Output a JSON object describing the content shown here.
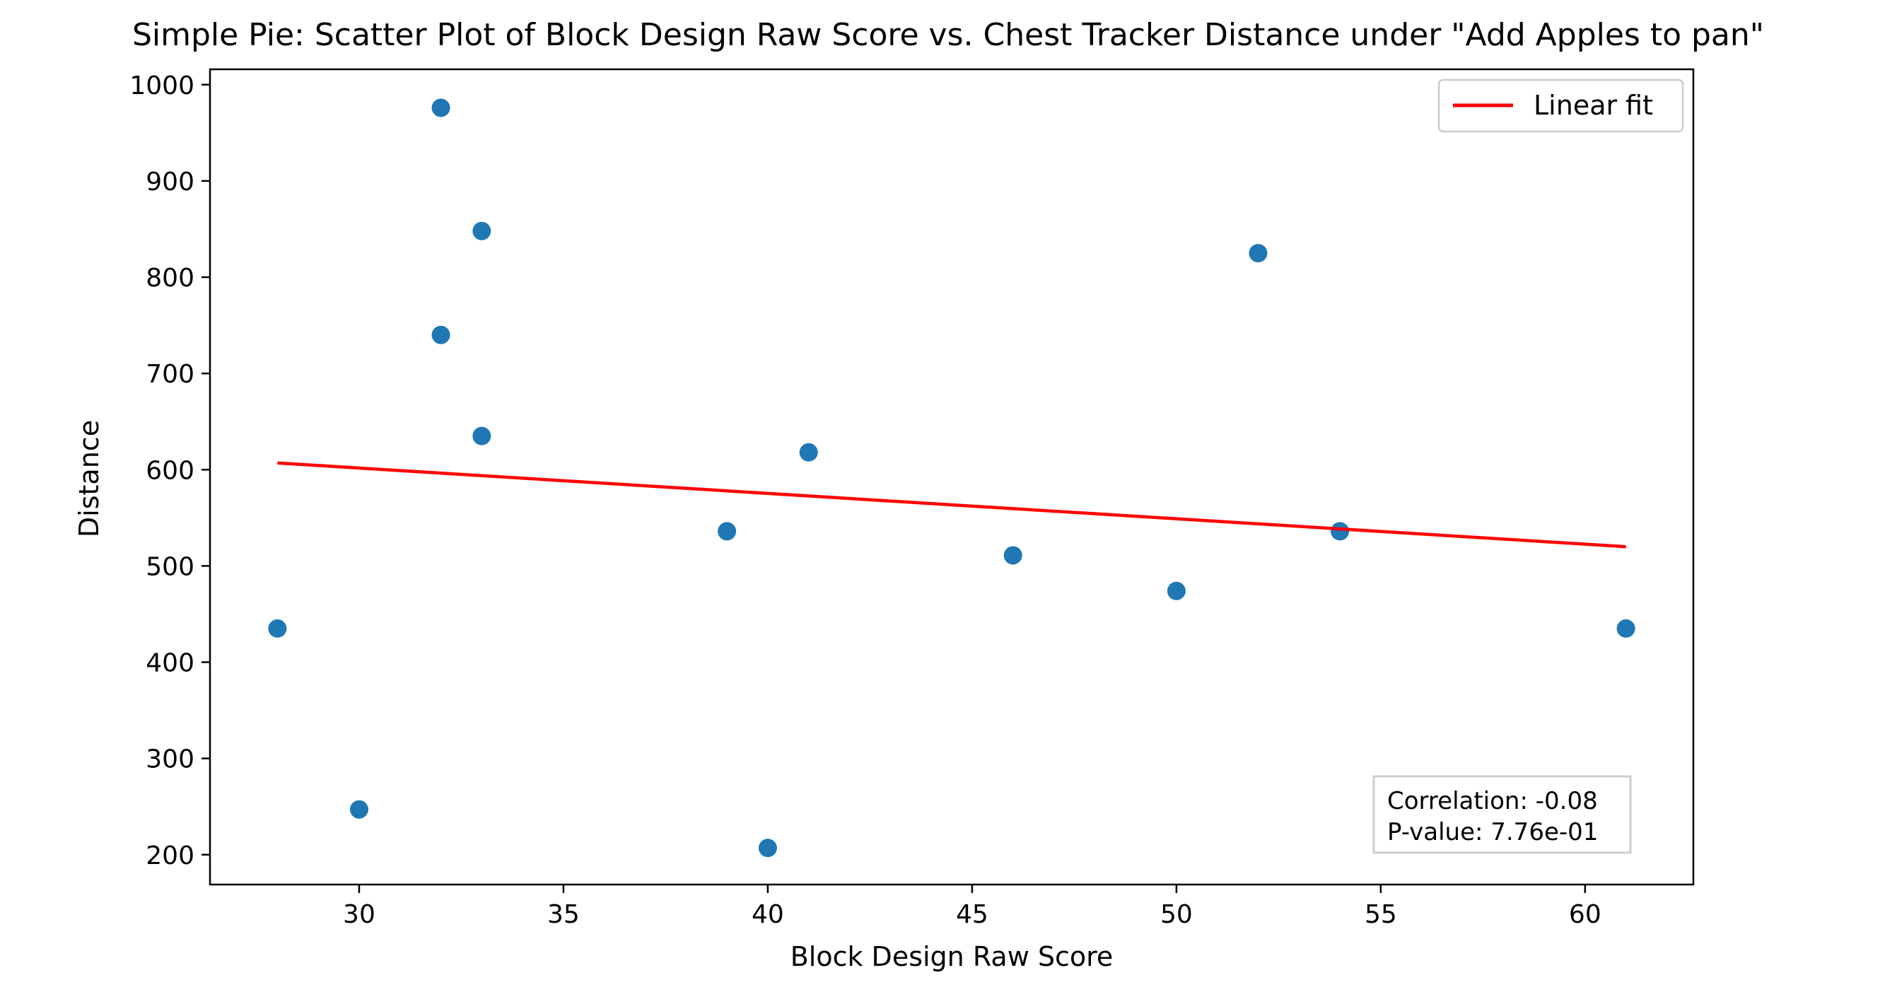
{
  "chart_data": {
    "type": "scatter",
    "title": "Simple Pie: Scatter Plot of Block Design Raw Score vs. Chest Tracker Distance under \"Add Apples to pan\"",
    "xlabel": "Block Design Raw Score",
    "ylabel": "Distance",
    "xlim": [
      26.35,
      62.65
    ],
    "ylim": [
      169,
      1016
    ],
    "xticks": [
      30,
      35,
      40,
      45,
      50,
      55,
      60
    ],
    "yticks": [
      200,
      300,
      400,
      500,
      600,
      700,
      800,
      900,
      1000
    ],
    "grid": false,
    "legend_position": "top-right",
    "colors": {
      "points": "#1f77b4",
      "fit": "#ff0000"
    },
    "series": [
      {
        "kind": "scatter",
        "x": [
          28,
          30,
          32,
          32,
          33,
          33,
          39,
          40,
          41,
          46,
          50,
          52,
          54,
          61
        ],
        "y": [
          435,
          247,
          976,
          740,
          848,
          635,
          536,
          207,
          618,
          511,
          474,
          825,
          536,
          435
        ]
      },
      {
        "kind": "line",
        "name": "Linear fit",
        "x": [
          28,
          61
        ],
        "y": [
          607,
          520
        ]
      }
    ],
    "annotation": {
      "lines": [
        "Correlation: -0.08",
        "P-value: 7.76e-01"
      ]
    }
  }
}
